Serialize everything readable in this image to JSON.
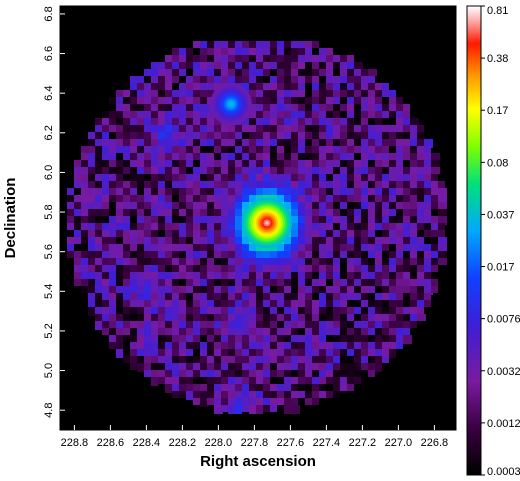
{
  "chart_data": {
    "type": "heatmap",
    "title": "",
    "xlabel": "Right ascension",
    "ylabel": "Declination",
    "x_ticks": [
      "228.8",
      "228.6",
      "228.4",
      "228.2",
      "228.0",
      "227.8",
      "227.6",
      "227.4",
      "227.2",
      "227.0",
      "226.8"
    ],
    "x_tick_values": [
      228.8,
      228.6,
      228.4,
      228.2,
      228.0,
      227.8,
      227.6,
      227.4,
      227.2,
      227.0,
      226.8
    ],
    "xlim": [
      228.88,
      226.68
    ],
    "x_inverted": true,
    "y_ticks": [
      "4.8",
      "5.0",
      "5.2",
      "5.4",
      "5.6",
      "5.8",
      "6.0",
      "6.2",
      "6.4",
      "6.6",
      "6.8"
    ],
    "y_tick_values": [
      4.8,
      5.0,
      5.2,
      5.4,
      5.6,
      5.8,
      6.0,
      6.2,
      6.4,
      6.6,
      6.8
    ],
    "ylim": [
      4.7,
      6.84
    ],
    "colorbar": {
      "scale": "log",
      "labels": [
        "0.81",
        "0.38",
        "0.17",
        "0.08",
        "0.037",
        "0.017",
        "0.0076",
        "0.0032",
        "0.0012",
        "0.0003"
      ],
      "min": 0.0003,
      "max": 0.81
    },
    "sources": [
      {
        "ra": 227.73,
        "dec": 5.745,
        "peak": 0.81,
        "scale": 0.045
      },
      {
        "ra": 227.93,
        "dec": 6.345,
        "peak": 0.03,
        "scale": 0.035
      },
      {
        "ra": 228.3,
        "dec": 6.2,
        "peak": 0.006,
        "scale": 0.04
      },
      {
        "ra": 228.4,
        "dec": 5.42,
        "peak": 0.005,
        "scale": 0.04
      },
      {
        "ra": 227.88,
        "dec": 5.25,
        "peak": 0.004,
        "scale": 0.05
      },
      {
        "ra": 227.88,
        "dec": 4.83,
        "peak": 0.005,
        "scale": 0.04
      },
      {
        "ra": 227.6,
        "dec": 6.25,
        "peak": 0.003,
        "scale": 0.03
      }
    ],
    "background_level": 0.0012,
    "grid": false
  }
}
